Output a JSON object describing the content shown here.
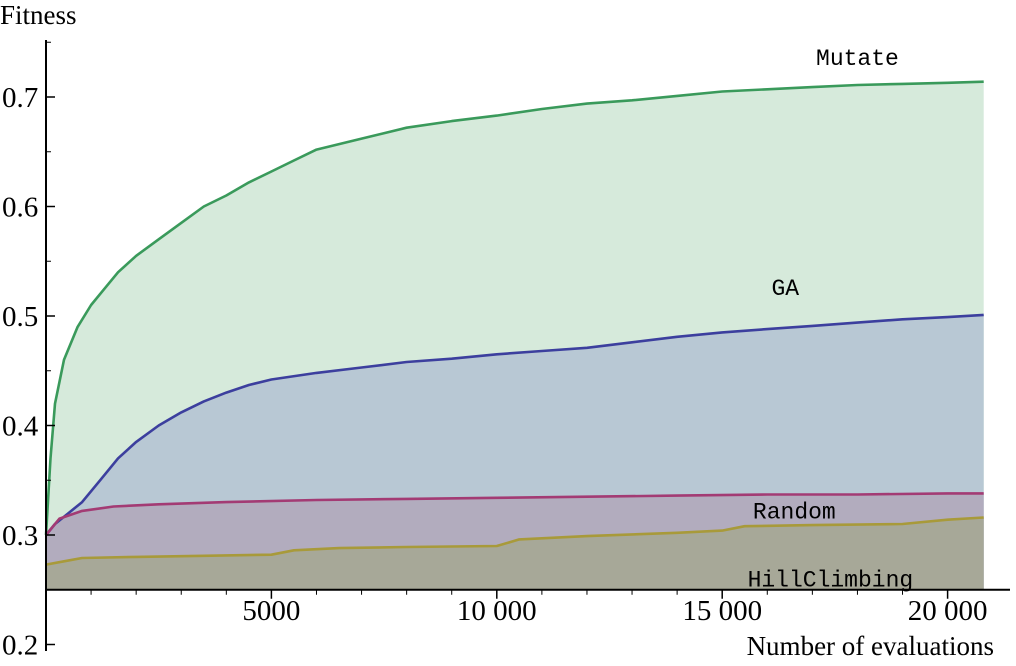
{
  "chart_data": {
    "type": "area",
    "title": "",
    "xlabel": "Number of evaluations",
    "ylabel": "Fitness",
    "xlim": [
      0,
      21000
    ],
    "ylim": [
      0.2,
      0.75
    ],
    "x_axis_crosses_y_at": 0.25,
    "x_ticks": [
      {
        "value": 5000,
        "label": "5000"
      },
      {
        "value": 10000,
        "label": "10 000"
      },
      {
        "value": 15000,
        "label": "15 000"
      },
      {
        "value": 20000,
        "label": "20 000"
      }
    ],
    "y_ticks": [
      {
        "value": 0.2,
        "label": "0.2"
      },
      {
        "value": 0.3,
        "label": "0.3"
      },
      {
        "value": 0.4,
        "label": "0.4"
      },
      {
        "value": 0.5,
        "label": "0.5"
      },
      {
        "value": 0.6,
        "label": "0.6"
      },
      {
        "value": 0.7,
        "label": "0.7"
      }
    ],
    "grid": false,
    "legend": "inline labels",
    "series": [
      {
        "name": "Mutate",
        "color": "#3a9a5b",
        "fill": "#d6eadb",
        "label_at": [
          18000,
          0.729
        ],
        "points": [
          [
            0,
            0.3
          ],
          [
            100,
            0.37
          ],
          [
            200,
            0.42
          ],
          [
            400,
            0.46
          ],
          [
            700,
            0.49
          ],
          [
            1000,
            0.51
          ],
          [
            1300,
            0.525
          ],
          [
            1600,
            0.54
          ],
          [
            2000,
            0.555
          ],
          [
            2500,
            0.57
          ],
          [
            3000,
            0.585
          ],
          [
            3500,
            0.6
          ],
          [
            4000,
            0.61
          ],
          [
            4500,
            0.622
          ],
          [
            5000,
            0.632
          ],
          [
            5500,
            0.642
          ],
          [
            6000,
            0.652
          ],
          [
            7000,
            0.662
          ],
          [
            8000,
            0.672
          ],
          [
            9000,
            0.678
          ],
          [
            10000,
            0.683
          ],
          [
            11000,
            0.689
          ],
          [
            12000,
            0.694
          ],
          [
            13000,
            0.697
          ],
          [
            14000,
            0.701
          ],
          [
            15000,
            0.705
          ],
          [
            16000,
            0.707
          ],
          [
            17000,
            0.709
          ],
          [
            18000,
            0.711
          ],
          [
            19000,
            0.712
          ],
          [
            20000,
            0.713
          ],
          [
            20800,
            0.714
          ]
        ]
      },
      {
        "name": "GA",
        "color": "#3c3f9e",
        "fill": "#b8c8d4",
        "label_at": [
          16400,
          0.519
        ],
        "points": [
          [
            0,
            0.3
          ],
          [
            200,
            0.31
          ],
          [
            500,
            0.32
          ],
          [
            800,
            0.33
          ],
          [
            1200,
            0.35
          ],
          [
            1600,
            0.37
          ],
          [
            2000,
            0.385
          ],
          [
            2500,
            0.4
          ],
          [
            3000,
            0.412
          ],
          [
            3500,
            0.422
          ],
          [
            4000,
            0.43
          ],
          [
            4500,
            0.437
          ],
          [
            5000,
            0.442
          ],
          [
            6000,
            0.448
          ],
          [
            7000,
            0.453
          ],
          [
            8000,
            0.458
          ],
          [
            9000,
            0.461
          ],
          [
            10000,
            0.465
          ],
          [
            11000,
            0.468
          ],
          [
            12000,
            0.471
          ],
          [
            13000,
            0.476
          ],
          [
            14000,
            0.481
          ],
          [
            15000,
            0.485
          ],
          [
            16000,
            0.488
          ],
          [
            17000,
            0.491
          ],
          [
            18000,
            0.494
          ],
          [
            19000,
            0.497
          ],
          [
            20000,
            0.499
          ],
          [
            20800,
            0.501
          ]
        ]
      },
      {
        "name": "Random",
        "color": "#a33b74",
        "fill": "#b2acbe",
        "label_at": [
          16600,
          0.315
        ],
        "points": [
          [
            0,
            0.3
          ],
          [
            100,
            0.305
          ],
          [
            300,
            0.315
          ],
          [
            800,
            0.322
          ],
          [
            1500,
            0.326
          ],
          [
            2500,
            0.328
          ],
          [
            4000,
            0.33
          ],
          [
            6000,
            0.332
          ],
          [
            8000,
            0.333
          ],
          [
            10000,
            0.334
          ],
          [
            12000,
            0.335
          ],
          [
            14000,
            0.336
          ],
          [
            16000,
            0.337
          ],
          [
            18000,
            0.337
          ],
          [
            20000,
            0.338
          ],
          [
            20800,
            0.338
          ]
        ]
      },
      {
        "name": "HillClimbing",
        "color": "#a89a3a",
        "fill": "#a7a898",
        "label_at": [
          17400,
          0.253
        ],
        "points": [
          [
            0,
            0.273
          ],
          [
            400,
            0.276
          ],
          [
            800,
            0.279
          ],
          [
            2000,
            0.28
          ],
          [
            3500,
            0.281
          ],
          [
            5000,
            0.282
          ],
          [
            5500,
            0.286
          ],
          [
            6500,
            0.288
          ],
          [
            8000,
            0.289
          ],
          [
            10000,
            0.29
          ],
          [
            10500,
            0.296
          ],
          [
            12000,
            0.299
          ],
          [
            14000,
            0.302
          ],
          [
            15000,
            0.304
          ],
          [
            15500,
            0.308
          ],
          [
            17000,
            0.309
          ],
          [
            19000,
            0.31
          ],
          [
            20000,
            0.314
          ],
          [
            20800,
            0.316
          ]
        ]
      }
    ]
  }
}
